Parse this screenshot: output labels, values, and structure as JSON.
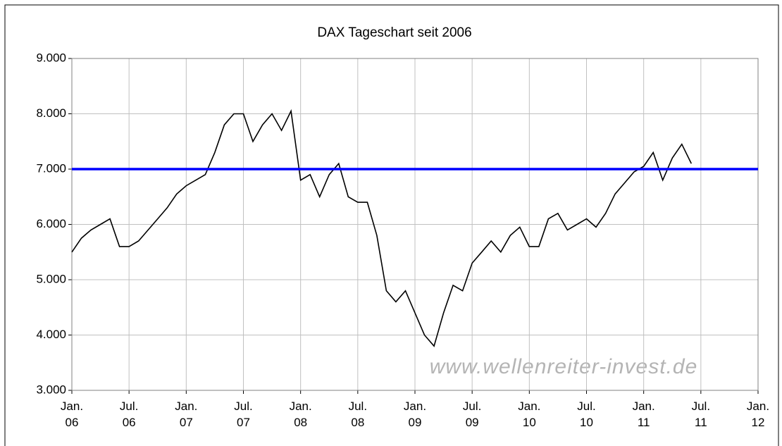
{
  "chart_data": {
    "type": "line",
    "title": "DAX Tageschart seit 2006",
    "watermark": "www.wellenreiter-invest.de",
    "x": [
      "2006-01",
      "2006-02",
      "2006-03",
      "2006-04",
      "2006-05",
      "2006-06",
      "2006-07",
      "2006-08",
      "2006-09",
      "2006-10",
      "2006-11",
      "2006-12",
      "2007-01",
      "2007-02",
      "2007-03",
      "2007-04",
      "2007-05",
      "2007-06",
      "2007-07",
      "2007-08",
      "2007-09",
      "2007-10",
      "2007-11",
      "2007-12",
      "2008-01",
      "2008-02",
      "2008-03",
      "2008-04",
      "2008-05",
      "2008-06",
      "2008-07",
      "2008-08",
      "2008-09",
      "2008-10",
      "2008-11",
      "2008-12",
      "2009-01",
      "2009-02",
      "2009-03",
      "2009-04",
      "2009-05",
      "2009-06",
      "2009-07",
      "2009-08",
      "2009-09",
      "2009-10",
      "2009-11",
      "2009-12",
      "2010-01",
      "2010-02",
      "2010-03",
      "2010-04",
      "2010-05",
      "2010-06",
      "2010-07",
      "2010-08",
      "2010-09",
      "2010-10",
      "2010-11",
      "2010-12",
      "2011-01",
      "2011-02",
      "2011-03",
      "2011-04",
      "2011-05",
      "2011-06"
    ],
    "series": [
      {
        "name": "DAX",
        "color": "#000000",
        "values": [
          5500,
          5750,
          5900,
          6000,
          6100,
          5600,
          5600,
          5700,
          5900,
          6100,
          6300,
          6550,
          6700,
          6800,
          6900,
          7300,
          7800,
          8000,
          8000,
          7500,
          7800,
          8000,
          7700,
          8050,
          6800,
          6900,
          6500,
          6900,
          7100,
          6500,
          6400,
          6400,
          5800,
          4800,
          4600,
          4800,
          4400,
          4000,
          3800,
          4400,
          4900,
          4800,
          5300,
          5500,
          5700,
          5500,
          5800,
          5950,
          5600,
          5600,
          6100,
          6200,
          5900,
          6000,
          6100,
          5950,
          6200,
          6550,
          6750,
          6950,
          7050,
          7300,
          6800,
          7200,
          7450,
          7100
        ]
      }
    ],
    "hline": {
      "value": 7000,
      "color": "#0000ff"
    },
    "xlim": [
      "2006-01",
      "2012-01"
    ],
    "xticks": [
      {
        "value": "2006-01",
        "label": "Jan. 06"
      },
      {
        "value": "2006-07",
        "label": "Jul. 06"
      },
      {
        "value": "2007-01",
        "label": "Jan. 07"
      },
      {
        "value": "2007-07",
        "label": "Jul. 07"
      },
      {
        "value": "2008-01",
        "label": "Jan. 08"
      },
      {
        "value": "2008-07",
        "label": "Jul. 08"
      },
      {
        "value": "2009-01",
        "label": "Jan. 09"
      },
      {
        "value": "2009-07",
        "label": "Jul. 09"
      },
      {
        "value": "2010-01",
        "label": "Jan. 10"
      },
      {
        "value": "2010-07",
        "label": "Jul. 10"
      },
      {
        "value": "2011-01",
        "label": "Jan. 11"
      },
      {
        "value": "2011-07",
        "label": "Jul. 11"
      },
      {
        "value": "2012-01",
        "label": "Jan. 12"
      }
    ],
    "ylim": [
      3000,
      9000
    ],
    "yticks": [
      {
        "value": 3000,
        "label": "3.000"
      },
      {
        "value": 4000,
        "label": "4.000"
      },
      {
        "value": 5000,
        "label": "5.000"
      },
      {
        "value": 6000,
        "label": "6.000"
      },
      {
        "value": 7000,
        "label": "7.000"
      },
      {
        "value": 8000,
        "label": "8.000"
      },
      {
        "value": 9000,
        "label": "9.000"
      }
    ],
    "grid": true
  }
}
